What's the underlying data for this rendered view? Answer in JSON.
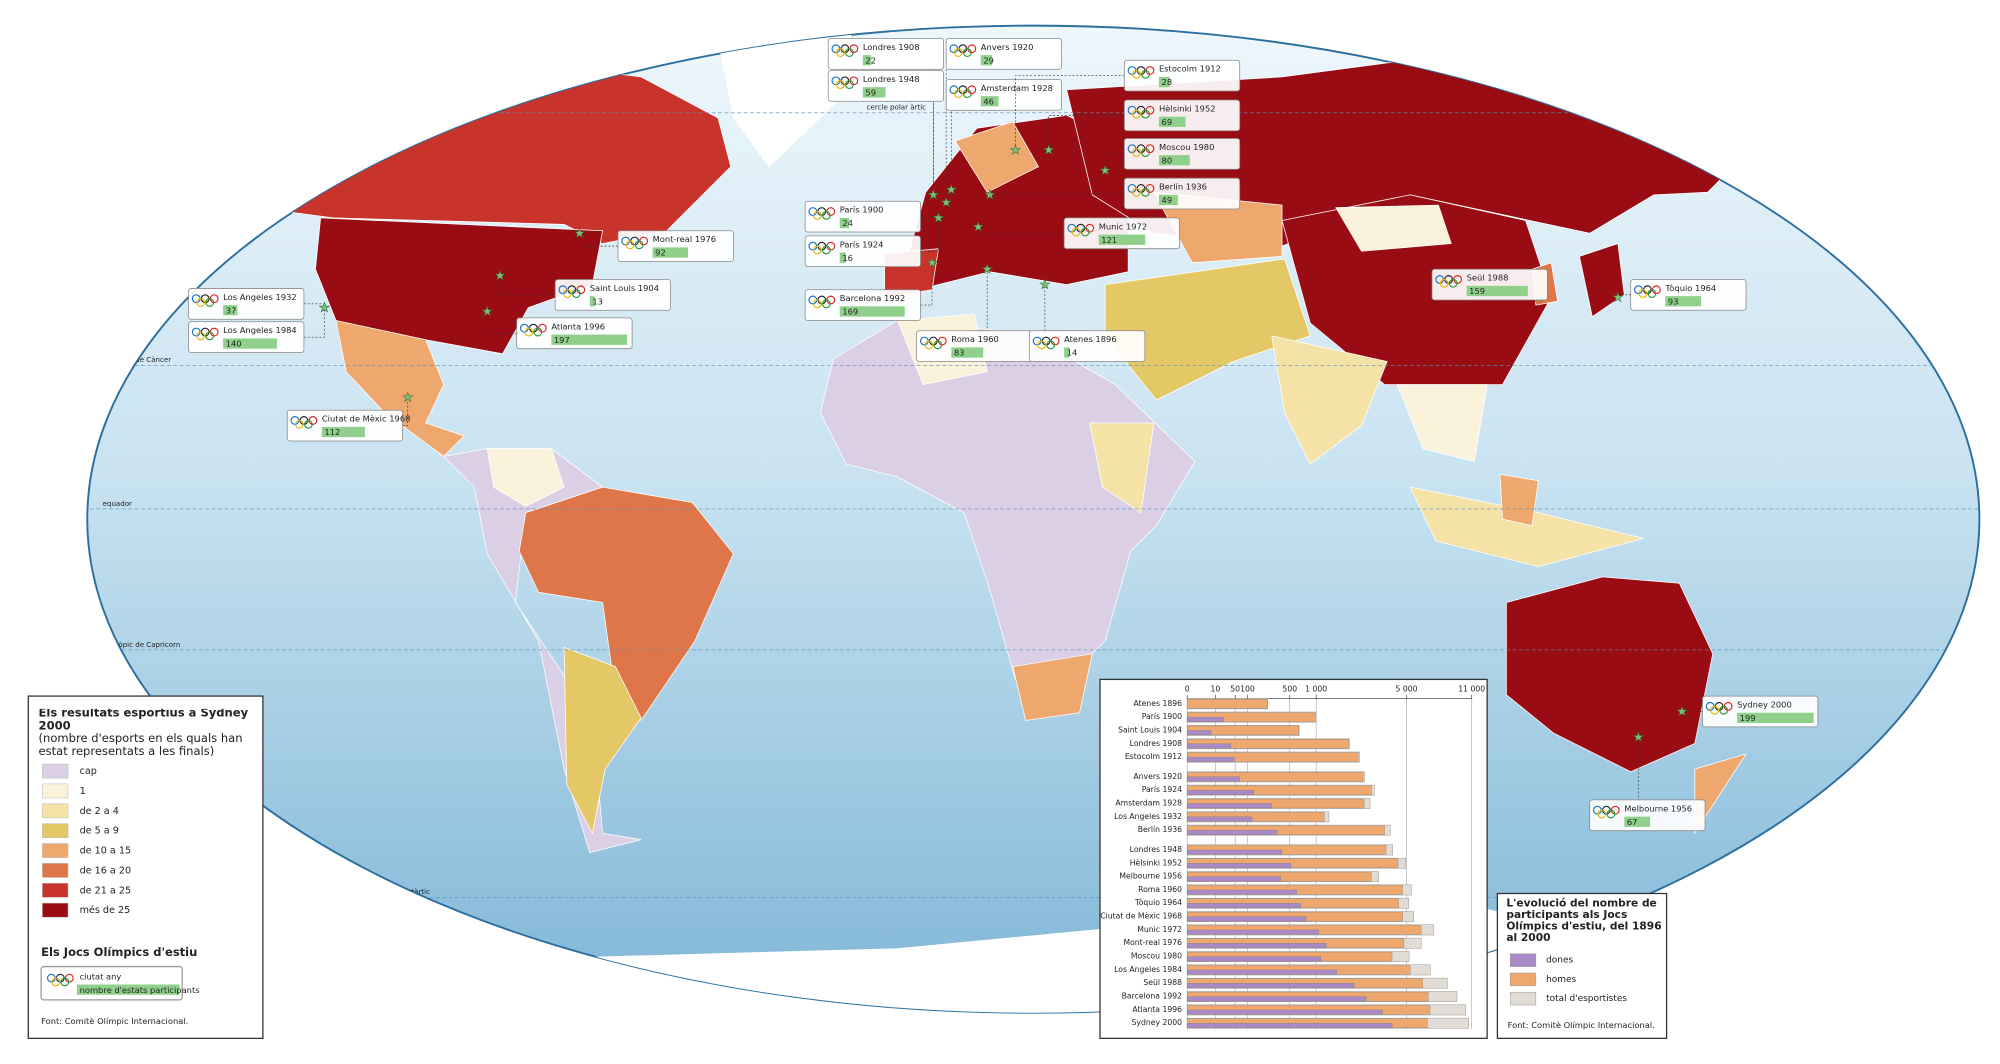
{
  "map": {
    "lines": [
      "cercle polar àrtic",
      "tròpic de Càncer",
      "equador",
      "tròpic de Capricorn",
      "cercle polar antàrtic"
    ],
    "hosts": [
      {
        "city": "Londres 1908",
        "countries": 22
      },
      {
        "city": "Londres 1948",
        "countries": 59
      },
      {
        "city": "Anvers 1920",
        "countries": 29
      },
      {
        "city": "Amsterdam 1928",
        "countries": 46
      },
      {
        "city": "Estocolm 1912",
        "countries": 28
      },
      {
        "city": "Hèlsinki 1952",
        "countries": 69
      },
      {
        "city": "Moscou 1980",
        "countries": 80
      },
      {
        "city": "Berlín 1936",
        "countries": 49
      },
      {
        "city": "Munic 1972",
        "countries": 121
      },
      {
        "city": "París 1900",
        "countries": 24
      },
      {
        "city": "París 1924",
        "countries": 16
      },
      {
        "city": "Barcelona 1992",
        "countries": 169
      },
      {
        "city": "Roma 1960",
        "countries": 83
      },
      {
        "city": "Atenes 1896",
        "countries": 14
      },
      {
        "city": "Mont-real 1976",
        "countries": 92
      },
      {
        "city": "Saint Louis 1904",
        "countries": 13
      },
      {
        "city": "Atlanta 1996",
        "countries": 197
      },
      {
        "city": "Los Angeles 1932",
        "countries": 37
      },
      {
        "city": "Los Angeles 1984",
        "countries": 140
      },
      {
        "city": "Ciutat de Mèxic 1968",
        "countries": 112
      },
      {
        "city": "Seül 1988",
        "countries": 159
      },
      {
        "city": "Tòquio 1964",
        "countries": 93
      },
      {
        "city": "Sydney 2000",
        "countries": 199
      },
      {
        "city": "Melbourne 1956",
        "countries": 67
      }
    ]
  },
  "legend": {
    "title": "Els resultats esportius a Sydney 2000",
    "subtitle": "(nombre d'esports en els quals han estat representats a les finals)",
    "classes": [
      {
        "label": "cap",
        "color": "#dacfe4"
      },
      {
        "label": "1",
        "color": "#fbf2dc"
      },
      {
        "label": "de 2 a 4",
        "color": "#f5e2a6"
      },
      {
        "label": "de 5 a 9",
        "color": "#e5c866"
      },
      {
        "label": "de 10 a 15",
        "color": "#eea86e"
      },
      {
        "label": "de 16 a 20",
        "color": "#df764a"
      },
      {
        "label": "de 21 a 25",
        "color": "#c8332b"
      },
      {
        "label": "més de 25",
        "color": "#9a0c14"
      }
    ],
    "games_title": "Els Jocs Olímpics d'estiu",
    "sample_city": "ciutat any",
    "sample_count": "nombre d'estats participants",
    "source": "Font: Comitè Olímpic Internacional."
  },
  "chart_data": {
    "type": "bar",
    "title": "L'evolució del nombre de participants als Jocs Olímpics d'estiu, del 1896 al 2000",
    "categories": [
      "Atenes 1896",
      "París 1900",
      "Saint Louis 1904",
      "Londres 1908",
      "Estocolm 1912",
      "Anvers 1920",
      "París 1924",
      "Amsterdam 1928",
      "Los Angeles 1932",
      "Berlín 1936",
      "Londres 1948",
      "Hèlsinki 1952",
      "Melbourne 1956",
      "Roma 1960",
      "Tòquio 1964",
      "Ciutat de Mèxic 1968",
      "Munic 1972",
      "Mont-real 1976",
      "Moscou 1980",
      "Los Angeles 1984",
      "Seül 1988",
      "Barcelona 1992",
      "Atlanta 1996",
      "Sydney 2000"
    ],
    "series": [
      {
        "name": "total d'esportistes",
        "color": "#e2dcd6",
        "values": [
          241,
          997,
          651,
          2008,
          2407,
          2626,
          3089,
          2883,
          1332,
          3963,
          4104,
          4955,
          3314,
          5338,
          5151,
          5516,
          7134,
          6084,
          5179,
          6829,
          8391,
          9356,
          10318,
          10651
        ]
      },
      {
        "name": "homes",
        "color": "#eea86e",
        "values": [
          241,
          975,
          645,
          1971,
          2359,
          2561,
          2954,
          2606,
          1206,
          3632,
          3714,
          4436,
          2938,
          4727,
          4473,
          4735,
          6075,
          4824,
          4064,
          5263,
          6197,
          6652,
          6806,
          6582
        ]
      },
      {
        "name": "dones",
        "color": "#a98ac6",
        "values": [
          0,
          22,
          6,
          37,
          48,
          65,
          135,
          277,
          126,
          331,
          390,
          519,
          376,
          611,
          678,
          781,
          1059,
          1260,
          1115,
          1566,
          2194,
          2704,
          3512,
          4069
        ]
      }
    ],
    "xlim": [
      0,
      11000
    ],
    "xticks": [
      0,
      10,
      50,
      100,
      500,
      {
        "value": 1000,
        "label": "1 000"
      },
      {
        "value": 5000,
        "label": "5 000"
      },
      {
        "value": 11000,
        "label": "11 000"
      }
    ],
    "grid": true,
    "source": "Font: Comitè Olímpic Internacional."
  }
}
